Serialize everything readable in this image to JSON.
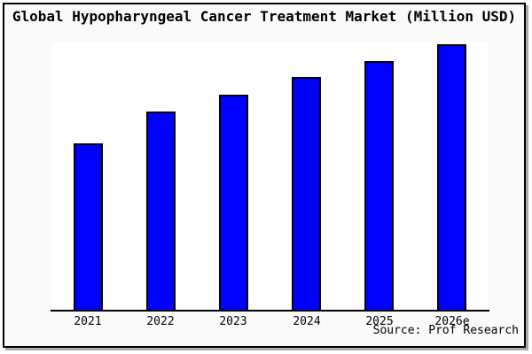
{
  "title": "Global Hypopharyngeal Cancer Treatment Market (Million USD)",
  "source_note": "Source: Prof Research",
  "colors": {
    "frame_background": "#fafafa",
    "plot_background": "#ffffff",
    "bar_fill": "#0000ff",
    "bar_border": "#000000",
    "axis": "#000000",
    "frame_border": "#000000",
    "frame_shadow": "#aaaaaa",
    "text": "#000000"
  },
  "chart_data": {
    "type": "bar",
    "title": "Global Hypopharyngeal Cancer Treatment Market (Million USD)",
    "categories": [
      "2021",
      "2022",
      "2023",
      "2024",
      "2025",
      "2026e"
    ],
    "values_relative_pct_of_2026e": [
      62.7,
      74.7,
      81.0,
      87.7,
      93.7,
      100
    ],
    "value_axis_note": "no y-axis ticks or gridlines visible; bar heights estimated relative to tallest bar (2026e = 100)",
    "xlabel": "",
    "ylabel": "",
    "grid": false,
    "legend": false,
    "bar_color": "#0000ff",
    "source_note": "Source: Prof Research"
  }
}
